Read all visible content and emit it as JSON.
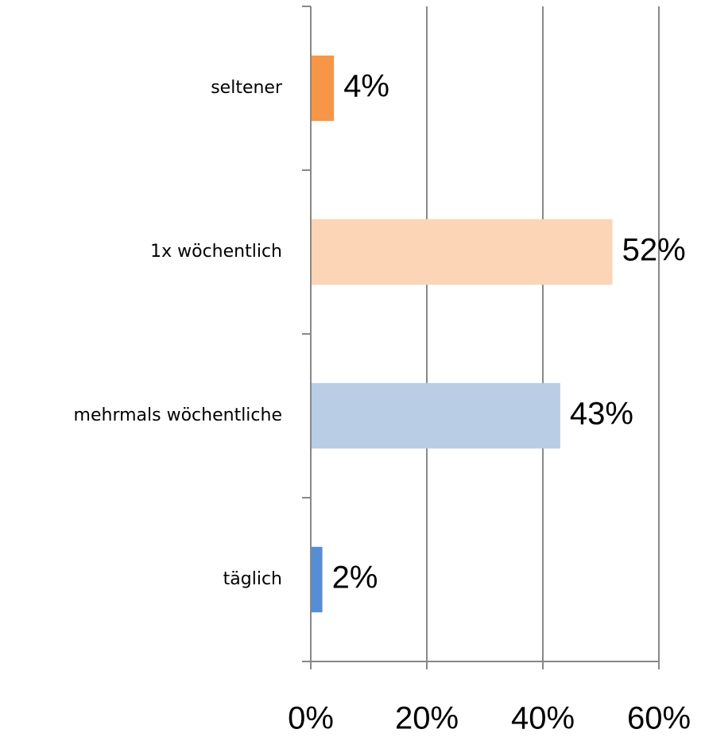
{
  "chart_data": {
    "type": "barh",
    "categories": [
      "täglich",
      "mehrmals wöchentliche",
      "1x wöchentlich",
      "seltener"
    ],
    "values": [
      2,
      43,
      52,
      4
    ],
    "value_labels": [
      "2%",
      "43%",
      "52%",
      "4%"
    ],
    "colors": [
      "#558ed5",
      "#b9cde5",
      "#fbd5b5",
      "#f79646"
    ],
    "xlim": [
      0,
      60
    ],
    "xticks": [
      {
        "value": 0,
        "label": "0%"
      },
      {
        "value": 20,
        "label": "20%"
      },
      {
        "value": 40,
        "label": "40%"
      },
      {
        "value": 60,
        "label": "60%"
      }
    ],
    "grid": true
  }
}
